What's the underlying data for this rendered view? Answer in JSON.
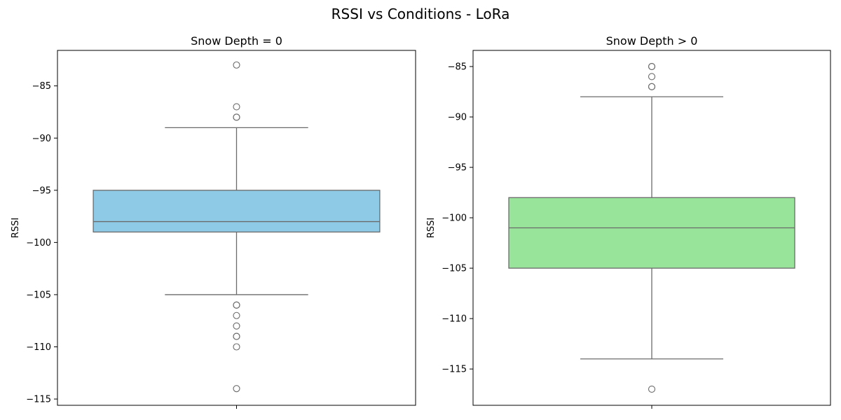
{
  "figure": {
    "title": "RSSI vs Conditions - LoRa"
  },
  "chart_data": [
    {
      "type": "box",
      "title": "Snow Depth = 0",
      "xlabel": "",
      "ylabel": "RSSI",
      "ylim": [
        -115.6,
        -81.6
      ],
      "yticks": [
        -85,
        -90,
        -95,
        -100,
        -105,
        -110,
        -115
      ],
      "ytick_labels": [
        "−85",
        "−90",
        "−95",
        "−100",
        "−105",
        "−110",
        "−115"
      ],
      "color": "#8ecae6",
      "box": {
        "q1": -99,
        "median": -98,
        "q3": -95,
        "whisker_low": -105,
        "whisker_high": -89
      },
      "outliers": [
        -83,
        -87,
        -88,
        -88,
        -106,
        -106,
        -107,
        -108,
        -109,
        -109,
        -110,
        -114
      ]
    },
    {
      "type": "box",
      "title": "Snow Depth > 0",
      "xlabel": "",
      "ylabel": "RSSI",
      "ylim": [
        -118.6,
        -83.4
      ],
      "yticks": [
        -85,
        -90,
        -95,
        -100,
        -105,
        -110,
        -115
      ],
      "ytick_labels": [
        "−85",
        "−90",
        "−95",
        "−100",
        "−105",
        "−110",
        "−115"
      ],
      "color": "#98e49a",
      "box": {
        "q1": -105,
        "median": -101,
        "q3": -98,
        "whisker_low": -114,
        "whisker_high": -88
      },
      "outliers": [
        -85,
        -85,
        -86,
        -87,
        -87,
        -117
      ]
    }
  ]
}
